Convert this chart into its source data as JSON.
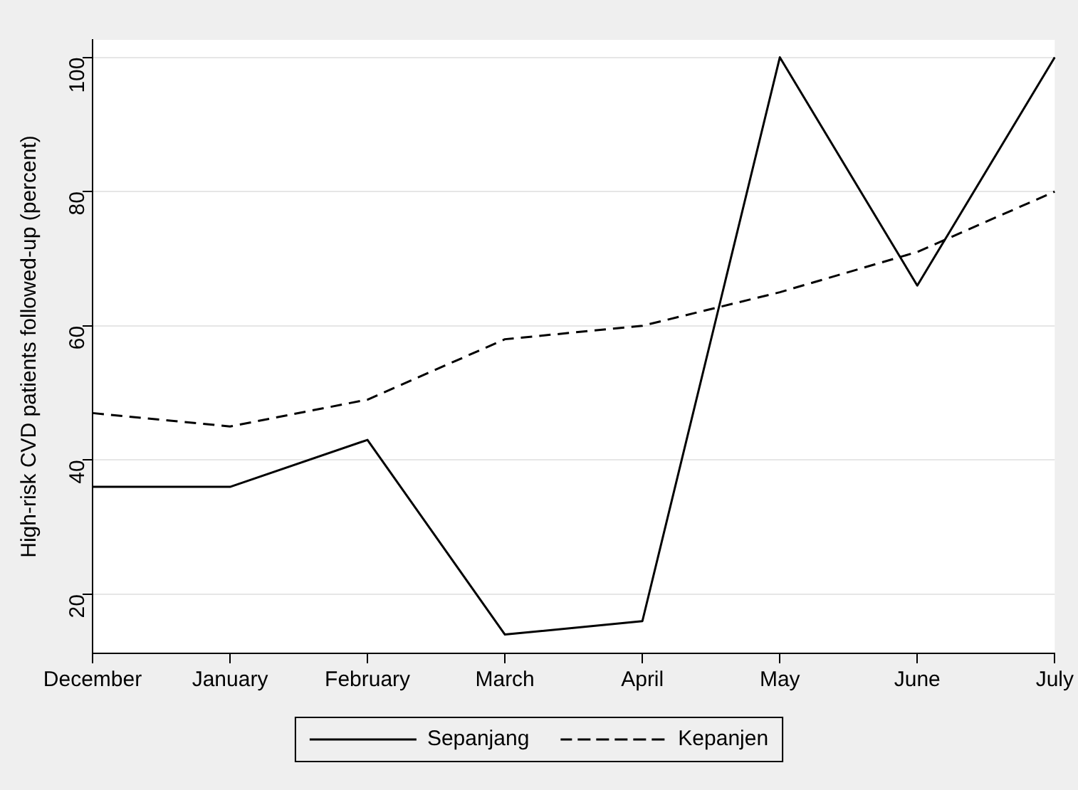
{
  "chart_data": {
    "type": "line",
    "ylabel": "High-risk CVD patients followed-up (percent)",
    "categories": [
      "December",
      "January",
      "February",
      "March",
      "April",
      "May",
      "June",
      "July"
    ],
    "series": [
      {
        "name": "Sepanjang",
        "color": "#000000",
        "line_style": "solid",
        "values": [
          36,
          36,
          43,
          14,
          16,
          100,
          66,
          100
        ]
      },
      {
        "name": "Kepanjen",
        "color": "#000000",
        "line_style": "dashed",
        "values": [
          47,
          45,
          49,
          58,
          60,
          65,
          71,
          80
        ]
      }
    ],
    "ylim": [
      11.2,
      102.6
    ],
    "yticks": [
      20,
      40,
      60,
      80,
      100
    ],
    "grid": "y",
    "legend": "bottom",
    "marker": "none"
  }
}
